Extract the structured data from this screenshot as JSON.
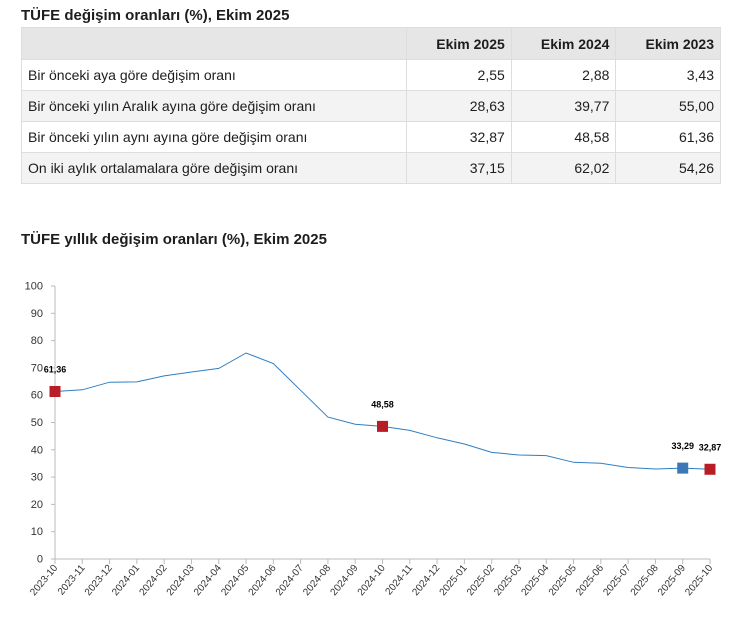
{
  "table": {
    "title": "TÜFE değişim oranları (%), Ekim 2025",
    "headers": [
      "",
      "Ekim 2025",
      "Ekim 2024",
      "Ekim 2023"
    ],
    "rows": [
      {
        "label": "Bir önceki aya göre değişim oranı",
        "values": [
          "2,55",
          "2,88",
          "3,43"
        ]
      },
      {
        "label": "Bir önceki yılın Aralık ayına göre değişim oranı",
        "values": [
          "28,63",
          "39,77",
          "55,00"
        ]
      },
      {
        "label": "Bir önceki yılın aynı ayına göre değişim oranı",
        "values": [
          "32,87",
          "48,58",
          "61,36"
        ]
      },
      {
        "label": "On iki aylık ortalamalara göre değişim oranı",
        "values": [
          "37,15",
          "62,02",
          "54,26"
        ]
      }
    ]
  },
  "chart_title": "TÜFE yıllık değişim oranları (%), Ekim 2025",
  "colors": {
    "line": "#2f7fc1",
    "marker_red": "#b81c24",
    "marker_blue": "#3b78b5",
    "grid_axis": "#bbbbbb",
    "tick_text": "#333333"
  },
  "chart_data": {
    "type": "line",
    "title": "TÜFE yıllık değişim oranları (%), Ekim 2025",
    "xlabel": "",
    "ylabel": "",
    "ylim": [
      0,
      100
    ],
    "yticks": [
      0,
      10,
      20,
      30,
      40,
      50,
      60,
      70,
      80,
      90,
      100
    ],
    "grid": false,
    "categories": [
      "2023-10",
      "2023-11",
      "2023-12",
      "2024-01",
      "2024-02",
      "2024-03",
      "2024-04",
      "2024-05",
      "2024-06",
      "2024-07",
      "2024-08",
      "2024-09",
      "2024-10",
      "2024-11",
      "2024-12",
      "2025-01",
      "2025-02",
      "2025-03",
      "2025-04",
      "2025-05",
      "2025-06",
      "2025-07",
      "2025-08",
      "2025-09",
      "2025-10"
    ],
    "series": [
      {
        "values": [
          61.36,
          61.98,
          64.77,
          64.86,
          67.07,
          68.5,
          69.8,
          75.45,
          71.6,
          61.78,
          51.97,
          49.38,
          48.58,
          47.09,
          44.38,
          42.12,
          39.05,
          38.1,
          37.86,
          35.41,
          35.05,
          33.52,
          32.95,
          33.29,
          32.87
        ]
      }
    ],
    "highlighted_points": [
      {
        "category": "2023-10",
        "value": 61.36,
        "label": "61,36",
        "color": "red"
      },
      {
        "category": "2024-10",
        "value": 48.58,
        "label": "48,58",
        "color": "red"
      },
      {
        "category": "2025-09",
        "value": 33.29,
        "label": "33,29",
        "color": "blue"
      },
      {
        "category": "2025-10",
        "value": 32.87,
        "label": "32,87",
        "color": "red"
      }
    ]
  }
}
